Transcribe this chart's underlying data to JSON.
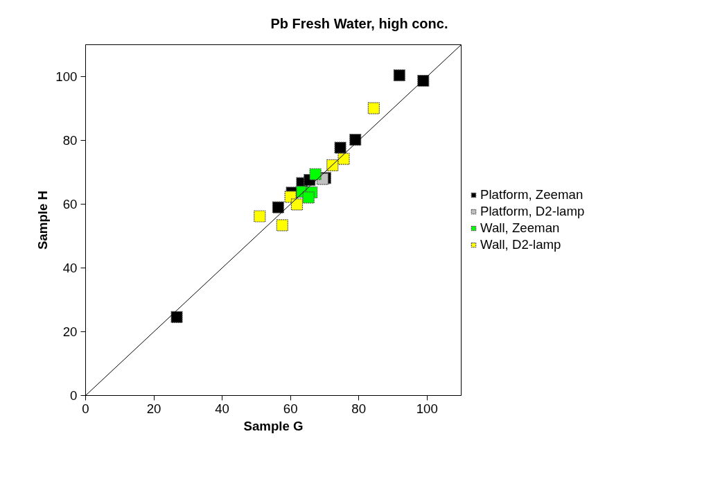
{
  "chart_data": {
    "type": "scatter",
    "title": "Pb Fresh Water, high conc.",
    "xlabel": "Sample G",
    "ylabel": "Sample H",
    "xlim": [
      0,
      110
    ],
    "ylim": [
      0,
      110
    ],
    "xticks": [
      0,
      20,
      40,
      60,
      80,
      100
    ],
    "yticks": [
      0,
      20,
      40,
      60,
      80,
      100
    ],
    "grid": false,
    "legend": "right",
    "marker": "square",
    "series": [
      {
        "name": "Platform, Zeeman",
        "color": "#000000",
        "x": [
          26.7,
          91.9,
          98.9,
          79.0,
          74.6,
          56.4,
          60.4,
          63.4,
          65.6,
          70.2
        ],
        "values": [
          24.6,
          100.4,
          98.7,
          80.2,
          77.7,
          59.0,
          63.6,
          66.6,
          67.6,
          68.2
        ]
      },
      {
        "name": "Platform, D2-lamp",
        "color": "#c0c0c0",
        "x": [
          69.4
        ],
        "values": [
          67.9
        ]
      },
      {
        "name": "Wall, Zeeman",
        "color": "#00ff00",
        "x": [
          67.3,
          63.4,
          66.2,
          65.3
        ],
        "values": [
          69.4,
          63.9,
          63.7,
          62.1
        ]
      },
      {
        "name": "Wall, D2-lamp",
        "color": "#ffff00",
        "x": [
          51.0,
          57.6,
          60.0,
          61.9,
          72.3,
          75.6,
          84.4
        ],
        "values": [
          56.2,
          53.4,
          62.3,
          59.9,
          72.2,
          74.2,
          90.1
        ]
      },
      {
        "type": "line",
        "color": "#000000",
        "marker": "none",
        "x": [
          0,
          110
        ],
        "values": [
          0,
          110
        ]
      }
    ]
  }
}
